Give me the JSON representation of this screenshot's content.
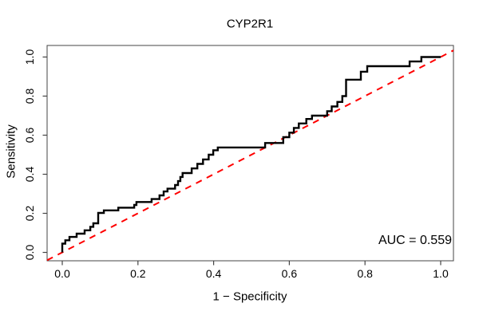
{
  "chart_data": {
    "type": "line",
    "subtype": "roc-curve",
    "title": "CYP2R1",
    "xlabel": "1 − Specificity",
    "ylabel": "Sensitivity",
    "xlim": [
      0.0,
      1.0
    ],
    "ylim": [
      0.0,
      1.0
    ],
    "x_ticks": [
      "0.0",
      "0.2",
      "0.4",
      "0.6",
      "0.8",
      "1.0"
    ],
    "y_ticks": [
      "0.0",
      "0.2",
      "0.4",
      "0.6",
      "0.8",
      "1.0"
    ],
    "grid": false,
    "auc": 0.559,
    "annotation": {
      "text": "AUC = 0.559",
      "position": "bottom-right"
    },
    "colors": {
      "roc": "#000000",
      "chance": "#ff0000",
      "axis": "#444444"
    },
    "series": [
      {
        "name": "chance-line",
        "color": "#ff0000",
        "line_style": "dashed",
        "line_width": 2,
        "extend_to_box": true,
        "points": [
          [
            0,
            0
          ],
          [
            1,
            1
          ]
        ]
      },
      {
        "name": "roc-curve-line",
        "color": "#000000",
        "line_style": "solid",
        "line_width": 2.4,
        "points": [
          [
            0,
            0
          ],
          [
            0,
            0.045
          ],
          [
            0.008,
            0.045
          ],
          [
            0.008,
            0.062
          ],
          [
            0.019,
            0.062
          ],
          [
            0.019,
            0.079
          ],
          [
            0.038,
            0.079
          ],
          [
            0.038,
            0.096
          ],
          [
            0.059,
            0.096
          ],
          [
            0.059,
            0.113
          ],
          [
            0.074,
            0.113
          ],
          [
            0.074,
            0.131
          ],
          [
            0.082,
            0.131
          ],
          [
            0.082,
            0.149
          ],
          [
            0.095,
            0.149
          ],
          [
            0.095,
            0.202
          ],
          [
            0.11,
            0.202
          ],
          [
            0.11,
            0.215
          ],
          [
            0.148,
            0.215
          ],
          [
            0.148,
            0.229
          ],
          [
            0.19,
            0.229
          ],
          [
            0.19,
            0.243
          ],
          [
            0.196,
            0.243
          ],
          [
            0.196,
            0.258
          ],
          [
            0.236,
            0.258
          ],
          [
            0.236,
            0.273
          ],
          [
            0.257,
            0.273
          ],
          [
            0.257,
            0.292
          ],
          [
            0.268,
            0.292
          ],
          [
            0.268,
            0.312
          ],
          [
            0.278,
            0.312
          ],
          [
            0.278,
            0.326
          ],
          [
            0.298,
            0.326
          ],
          [
            0.298,
            0.345
          ],
          [
            0.306,
            0.345
          ],
          [
            0.306,
            0.365
          ],
          [
            0.312,
            0.365
          ],
          [
            0.312,
            0.386
          ],
          [
            0.318,
            0.386
          ],
          [
            0.318,
            0.406
          ],
          [
            0.342,
            0.406
          ],
          [
            0.342,
            0.43
          ],
          [
            0.357,
            0.43
          ],
          [
            0.357,
            0.453
          ],
          [
            0.372,
            0.453
          ],
          [
            0.372,
            0.476
          ],
          [
            0.387,
            0.476
          ],
          [
            0.387,
            0.5
          ],
          [
            0.399,
            0.5
          ],
          [
            0.399,
            0.523
          ],
          [
            0.411,
            0.523
          ],
          [
            0.411,
            0.537
          ],
          [
            0.536,
            0.537
          ],
          [
            0.536,
            0.56
          ],
          [
            0.584,
            0.56
          ],
          [
            0.584,
            0.59
          ],
          [
            0.6,
            0.59
          ],
          [
            0.6,
            0.613
          ],
          [
            0.612,
            0.613
          ],
          [
            0.612,
            0.637
          ],
          [
            0.625,
            0.637
          ],
          [
            0.625,
            0.66
          ],
          [
            0.645,
            0.66
          ],
          [
            0.645,
            0.683
          ],
          [
            0.66,
            0.683
          ],
          [
            0.66,
            0.7
          ],
          [
            0.7,
            0.7
          ],
          [
            0.7,
            0.723
          ],
          [
            0.712,
            0.723
          ],
          [
            0.712,
            0.747
          ],
          [
            0.727,
            0.747
          ],
          [
            0.727,
            0.77
          ],
          [
            0.74,
            0.77
          ],
          [
            0.74,
            0.8
          ],
          [
            0.75,
            0.8
          ],
          [
            0.75,
            0.884
          ],
          [
            0.789,
            0.884
          ],
          [
            0.789,
            0.925
          ],
          [
            0.806,
            0.925
          ],
          [
            0.806,
            0.953
          ],
          [
            0.918,
            0.953
          ],
          [
            0.918,
            0.977
          ],
          [
            0.949,
            0.977
          ],
          [
            0.949,
            1
          ],
          [
            1,
            1
          ]
        ]
      }
    ]
  }
}
